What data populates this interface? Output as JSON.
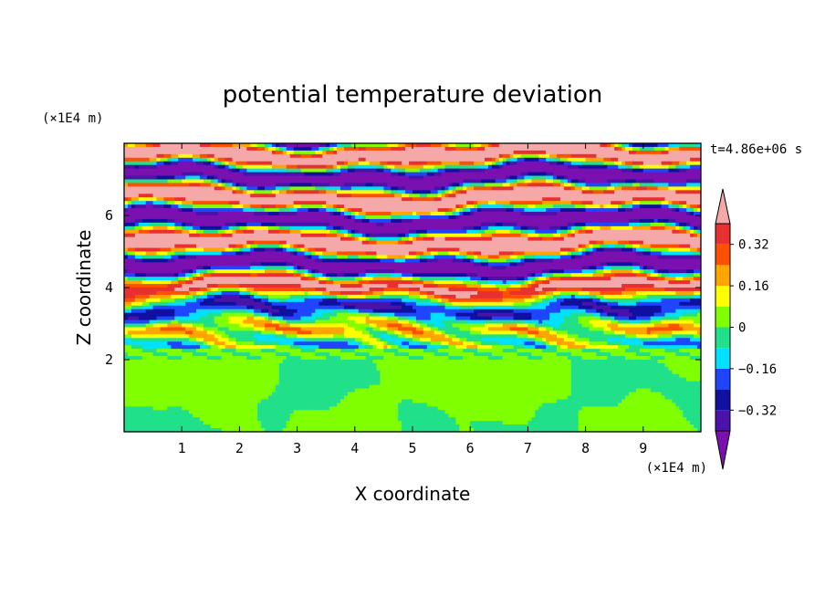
{
  "chart_data": {
    "type": "heatmap",
    "title": "potential temperature deviation",
    "xlabel": "X coordinate",
    "ylabel": "Z coordinate",
    "x_unit": "(×1E4 m)",
    "y_unit": "(×1E4 m)",
    "time_label": "t=4.86e+06 s",
    "x_ticks": [
      1,
      2,
      3,
      4,
      5,
      6,
      7,
      8,
      9
    ],
    "y_ticks": [
      2,
      4,
      6
    ],
    "xlim": [
      0,
      10
    ],
    "ylim": [
      0,
      8
    ],
    "colorbar": {
      "levels": [
        -0.4,
        -0.32,
        -0.24,
        -0.16,
        -0.08,
        0,
        0.08,
        0.16,
        0.24,
        0.32,
        0.4
      ],
      "labels": [
        "0.32",
        "0.16",
        "0",
        "−0.16",
        "−0.32"
      ],
      "label_values": [
        0.32,
        0.16,
        0,
        -0.16,
        -0.32
      ],
      "colors": [
        "#7a10b0",
        "#4a12a8",
        "#1010a0",
        "#1f45ff",
        "#00e0ff",
        "#20e08a",
        "#80ff00",
        "#ffff00",
        "#ffa500",
        "#ff5000",
        "#e83030",
        "#f4a8a8"
      ],
      "extend": "both"
    }
  }
}
